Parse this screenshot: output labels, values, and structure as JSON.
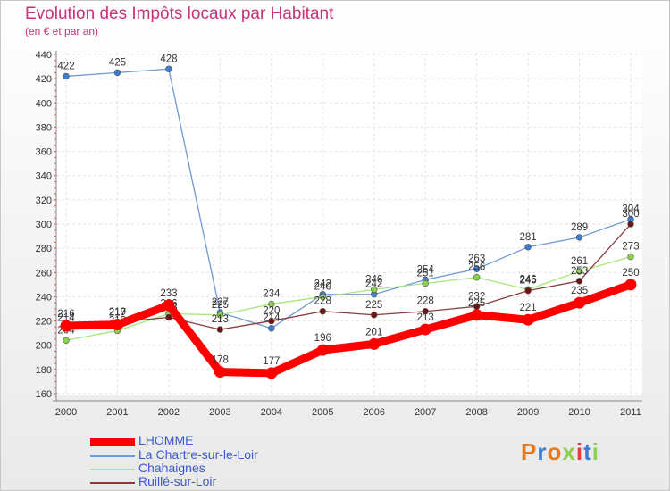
{
  "chart_data": {
    "type": "line",
    "title": "Evolution des Impôts locaux par Habitant",
    "subtitle": "(en € et par an)",
    "xlabel": "",
    "ylabel": "",
    "ylim": [
      160,
      440
    ],
    "yticks": [
      160,
      180,
      200,
      220,
      240,
      260,
      280,
      300,
      320,
      340,
      360,
      380,
      400,
      420,
      440
    ],
    "categories": [
      "2000",
      "2001",
      "2002",
      "2003",
      "2004",
      "2005",
      "2006",
      "2007",
      "2008",
      "2009",
      "2010",
      "2011"
    ],
    "grid": true,
    "series": [
      {
        "name": "La Chartre-sur-le-Loir",
        "color": "#6e9bd2",
        "marker_color": "#3c7ed2",
        "values": [
          422,
          425,
          428,
          227,
          214,
          242,
          242,
          254,
          263,
          281,
          289,
          304
        ],
        "labels": [
          "422",
          "425",
          "428",
          "227",
          "214",
          "242",
          "242",
          "254",
          "263",
          "281",
          "289",
          "304"
        ]
      },
      {
        "name": "Chahaignes",
        "color": "#a8e67a",
        "marker_color": "#8ad24a",
        "values": [
          204,
          212,
          226,
          225,
          234,
          240,
          246,
          251,
          256,
          246,
          261,
          273
        ],
        "labels": [
          "204",
          "212",
          "226",
          "225",
          "234",
          "240",
          "246",
          "251",
          "256",
          "246",
          "261",
          "273"
        ]
      },
      {
        "name": "Ruillé-sur-Loir",
        "color": "#8c3c3c",
        "marker_color": "#6e1414",
        "values": [
          214,
          219,
          223,
          213,
          220,
          228,
          225,
          228,
          232,
          245,
          253,
          300
        ],
        "labels": [
          "214",
          "219",
          "223",
          "213",
          "220",
          "228",
          "225",
          "228",
          "232",
          "245",
          "253",
          "300"
        ]
      },
      {
        "name": "LHOMME",
        "color": "#ff0000",
        "marker_color": "#ff0000",
        "values": [
          216,
          217,
          233,
          178,
          177,
          196,
          201,
          213,
          225,
          221,
          235,
          250
        ],
        "labels": [
          "216",
          "217",
          "233",
          "178",
          "177",
          "196",
          "201",
          "213",
          "225",
          "221",
          "235",
          "250"
        ]
      }
    ]
  },
  "legend": [
    {
      "label": "LHOMME",
      "color": "#ff0000"
    },
    {
      "label": "La Chartre-sur-le-Loir",
      "color": "#6e9bd2"
    },
    {
      "label": "Chahaignes",
      "color": "#a8e67a"
    },
    {
      "label": "Ruillé-sur-Loir",
      "color": "#8c3c3c"
    }
  ],
  "logo": {
    "text": "Proxiti",
    "colors": [
      "#e67a1e",
      "#3c7ed2",
      "#e67a1e",
      "#8ad24a",
      "#e63c3c",
      "#3c7ed2",
      "#8ad24a"
    ]
  }
}
